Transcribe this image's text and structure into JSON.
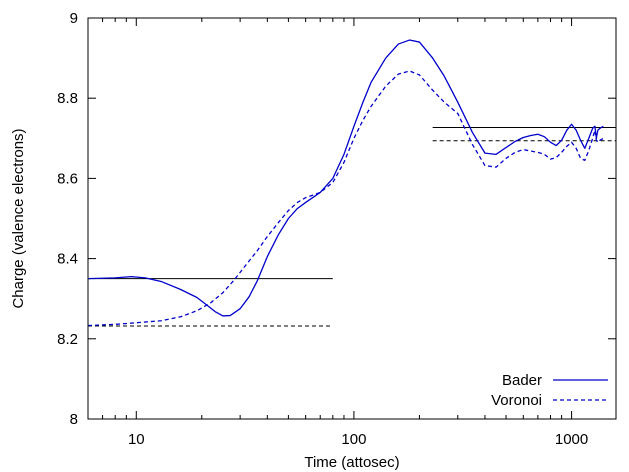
{
  "chart_data": {
    "type": "line",
    "title": "",
    "xlabel": "Time (attosec)",
    "ylabel": "Charge (valence electrons)",
    "xscale": "log",
    "xlim": [
      6,
      1600
    ],
    "ylim": [
      8,
      9
    ],
    "xticks": [
      10,
      100,
      1000
    ],
    "xtick_labels": [
      "10",
      "100",
      "1000"
    ],
    "yticks": [
      8,
      8.2,
      8.4,
      8.6,
      8.8,
      9
    ],
    "ytick_labels": [
      "8",
      "8.2",
      "8.4",
      "8.6",
      "8.8",
      "9"
    ],
    "grid": false,
    "legend": "bottom-right",
    "series": [
      {
        "name": "Bader",
        "style": "solid",
        "color": "#0000cc",
        "x": [
          6,
          8,
          9.5,
          11,
          13,
          16,
          19,
          21,
          23,
          25,
          27,
          30,
          33,
          36,
          40,
          45,
          50,
          55,
          60,
          70,
          80,
          90,
          100,
          110,
          120,
          140,
          160,
          180,
          200,
          230,
          260,
          300,
          350,
          400,
          450,
          500,
          550,
          600,
          650,
          700,
          750,
          800,
          850,
          900,
          950,
          1000,
          1050,
          1100,
          1150,
          1200,
          1250,
          1280,
          1300,
          1320,
          1350,
          1400
        ],
        "y": [
          8.35,
          8.352,
          8.355,
          8.352,
          8.343,
          8.323,
          8.303,
          8.285,
          8.268,
          8.257,
          8.258,
          8.275,
          8.305,
          8.345,
          8.405,
          8.46,
          8.5,
          8.525,
          8.54,
          8.565,
          8.6,
          8.66,
          8.73,
          8.79,
          8.84,
          8.9,
          8.935,
          8.945,
          8.94,
          8.9,
          8.855,
          8.79,
          8.715,
          8.663,
          8.66,
          8.677,
          8.692,
          8.702,
          8.707,
          8.71,
          8.704,
          8.69,
          8.682,
          8.695,
          8.72,
          8.735,
          8.72,
          8.695,
          8.675,
          8.7,
          8.725,
          8.73,
          8.7,
          8.72,
          8.725,
          8.73
        ]
      },
      {
        "name": "Voronoi",
        "style": "dashed",
        "color": "#0000cc",
        "x": [
          6,
          8,
          10,
          13,
          16,
          19,
          22,
          25,
          28,
          32,
          36,
          40,
          45,
          50,
          55,
          60,
          70,
          80,
          90,
          100,
          110,
          120,
          140,
          160,
          180,
          200,
          230,
          260,
          300,
          350,
          400,
          450,
          500,
          550,
          600,
          650,
          700,
          750,
          800,
          850,
          900,
          950,
          1000,
          1050,
          1100,
          1150,
          1200,
          1250,
          1280,
          1300,
          1320,
          1350,
          1400
        ],
        "y": [
          8.233,
          8.236,
          8.24,
          8.245,
          8.255,
          8.27,
          8.29,
          8.315,
          8.345,
          8.385,
          8.42,
          8.455,
          8.49,
          8.52,
          8.54,
          8.552,
          8.565,
          8.59,
          8.64,
          8.7,
          8.745,
          8.78,
          8.83,
          8.86,
          8.868,
          8.858,
          8.82,
          8.79,
          8.762,
          8.685,
          8.632,
          8.628,
          8.65,
          8.665,
          8.672,
          8.668,
          8.665,
          8.66,
          8.648,
          8.652,
          8.665,
          8.68,
          8.69,
          8.675,
          8.65,
          8.645,
          8.67,
          8.7,
          8.72,
          8.695,
          8.69,
          8.695,
          8.7
        ]
      }
    ],
    "reference_lines": [
      {
        "style": "solid",
        "color": "#000000",
        "x": [
          6,
          80
        ],
        "y": 8.35
      },
      {
        "style": "dashed",
        "color": "#000000",
        "x": [
          6,
          80
        ],
        "y": 8.232
      },
      {
        "style": "solid",
        "color": "#000000",
        "x": [
          230,
          1600
        ],
        "y": 8.727
      },
      {
        "style": "dashed",
        "color": "#000000",
        "x": [
          230,
          1600
        ],
        "y": 8.694
      }
    ]
  }
}
